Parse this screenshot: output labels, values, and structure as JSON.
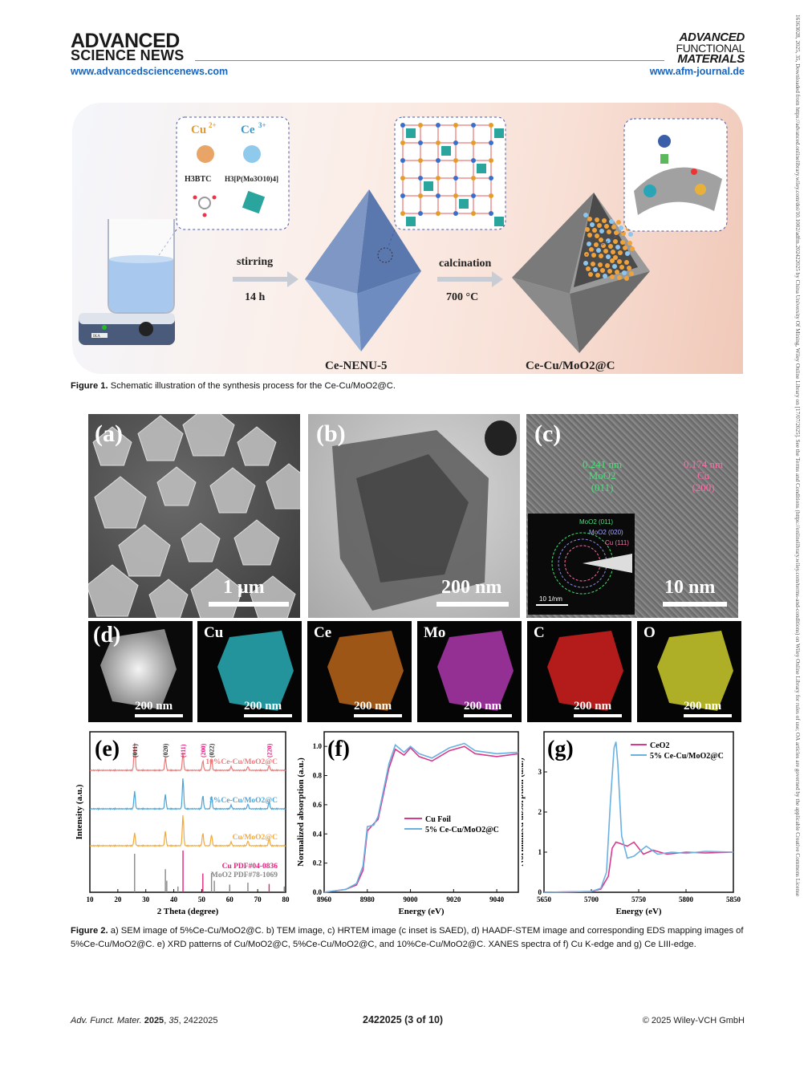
{
  "header": {
    "publisher_line1": "ADVANCED",
    "publisher_line2": "SCIENCE NEWS",
    "publisher_url": "www.advancedsciencenews.com",
    "journal_line1": "ADVANCED",
    "journal_line2": "FUNCTIONAL",
    "journal_line3": "MATERIALS",
    "journal_url": "www.afm-journal.de"
  },
  "side_note": "16163028, 2025, 35, Downloaded from https://advanced.onlinelibrary.wiley.com/doi/10.1002/adfm.202422025 by China University Of Mining, Wiley Online Library on [17/07/2025]. See the Terms and Conditions (https://onlinelibrary.wiley.com/terms-and-conditions) on Wiley Online Library for rules of use; OA articles are governed by the applicable Creative Commons License",
  "figure1": {
    "ion1": "Cu",
    "ion1_sup": "2+",
    "ion2": "Ce",
    "ion2_sup": "3+",
    "ligand1": "H3BTC",
    "ligand2": "H3[P(Mo3O10)4]",
    "step1_top": "stirring",
    "step1_bottom": "14 h",
    "step2_top": "calcination",
    "step2_bottom": "700 °C",
    "product1": "Ce-NENU-5",
    "product2": "Ce-Cu/MoO2@C",
    "stirrer_brand": "IKA",
    "caption_label": "Figure 1.",
    "caption_text": "Schematic illustration of the synthesis process for the Ce-Cu/MoO2@C."
  },
  "figure2": {
    "panel_a": {
      "label": "(a)",
      "scale": "1 μm"
    },
    "panel_b": {
      "label": "(b)",
      "scale": "200 nm"
    },
    "panel_c": {
      "label": "(c)",
      "scale": "10 nm",
      "ann1_l1": "0.241 nm",
      "ann1_l2": "MoO2",
      "ann1_l3": "(011)",
      "ann2_l1": "0.174 nm",
      "ann2_l2": "Cu",
      "ann2_l3": "(200)",
      "saed_1": "MoO2 (011)",
      "saed_2": "MoO2 (020)",
      "saed_3": "Cu (111)",
      "saed_scale": "10 1/nm"
    },
    "panel_d": {
      "label": "(d)",
      "maps": [
        "Cu",
        "Ce",
        "Mo",
        "C",
        "O"
      ],
      "scale": "200 nm"
    },
    "caption_label": "Figure 2.",
    "caption_text": "a) SEM image of 5%Ce-Cu/MoO2@C. b) TEM image, c) HRTEM image (c inset is SAED), d) HAADF-STEM image and corresponding EDS mapping images of 5%Ce-Cu/MoO2@C. e) XRD patterns of Cu/MoO2@C, 5%Ce-Cu/MoO2@C, and 10%Ce-Cu/MoO2@C. XANES spectra of f) Cu K-edge and g) Ce LIII-edge."
  },
  "chart_data": [
    {
      "type": "line",
      "panel": "(e)",
      "xlabel": "2 Theta (degree)",
      "ylabel": "Intensity (a.u.)",
      "xlim": [
        10,
        80
      ],
      "x_ticks": [
        10,
        20,
        30,
        40,
        50,
        60,
        70,
        80
      ],
      "peak_labels": [
        {
          "text": "(011)",
          "x": 26,
          "color": "#333333"
        },
        {
          "text": "(020)",
          "x": 37,
          "color": "#333333"
        },
        {
          "text": "(111)",
          "x": 43.3,
          "color": "#e0247a"
        },
        {
          "text": "(200)",
          "x": 50.4,
          "color": "#e0247a"
        },
        {
          "text": "(022)",
          "x": 53.5,
          "color": "#333333"
        },
        {
          "text": "(220)",
          "x": 74.1,
          "color": "#e0247a"
        }
      ],
      "series": [
        {
          "name": "10%Ce-Cu/MoO2@C",
          "color": "#f07878",
          "peaks": [
            [
              26,
              0.85
            ],
            [
              37,
              0.4
            ],
            [
              43.3,
              0.55
            ],
            [
              50.4,
              0.3
            ],
            [
              53.5,
              0.35
            ],
            [
              60.5,
              0.12
            ],
            [
              66.5,
              0.12
            ],
            [
              74.1,
              0.15
            ]
          ]
        },
        {
          "name": "5%Ce-Cu/MoO2@C",
          "color": "#4ba3d8",
          "peaks": [
            [
              26,
              0.55
            ],
            [
              37,
              0.45
            ],
            [
              43.3,
              0.95
            ],
            [
              50.4,
              0.42
            ],
            [
              53.5,
              0.4
            ],
            [
              60.5,
              0.12
            ],
            [
              66.5,
              0.15
            ],
            [
              74.1,
              0.22
            ]
          ]
        },
        {
          "name": "Cu/MoO2@C",
          "color": "#f2a93b",
          "peaks": [
            [
              26,
              0.4
            ],
            [
              37,
              0.45
            ],
            [
              43.3,
              0.95
            ],
            [
              50.4,
              0.4
            ],
            [
              53.5,
              0.35
            ],
            [
              60.5,
              0.12
            ],
            [
              66.5,
              0.15
            ],
            [
              74.1,
              0.22
            ]
          ]
        }
      ],
      "reference_legend": [
        {
          "name": "Cu PDF#04-0836",
          "color": "#e0247a",
          "sticks": [
            [
              43.3,
              1.0
            ],
            [
              50.4,
              0.45
            ],
            [
              74.1,
              0.2
            ]
          ]
        },
        {
          "name": "MoO2 PDF#78-1069",
          "color": "#888888",
          "sticks": [
            [
              26,
              1.0
            ],
            [
              37,
              0.6
            ],
            [
              37.5,
              0.3
            ],
            [
              41.5,
              0.15
            ],
            [
              53.5,
              0.5
            ],
            [
              54.5,
              0.3
            ],
            [
              60,
              0.2
            ],
            [
              66.5,
              0.25
            ],
            [
              79.5,
              0.15
            ]
          ]
        }
      ]
    },
    {
      "type": "line",
      "panel": "(f)",
      "xlabel": "Energy (eV)",
      "ylabel": "Normalized absorption (a.u.)",
      "xlim": [
        8960,
        9050
      ],
      "ylim": [
        0,
        1.1
      ],
      "x_ticks": [
        8960,
        8980,
        9000,
        9020,
        9040
      ],
      "y_ticks": [
        0.0,
        0.2,
        0.4,
        0.6,
        0.8,
        1.0
      ],
      "legend": "bottom-right",
      "series": [
        {
          "name": "Cu Foil",
          "color": "#d63a8e",
          "x": [
            8960,
            8970,
            8975,
            8978,
            8980,
            8983,
            8985,
            8990,
            8993,
            8997,
            9000,
            9004,
            9010,
            9018,
            9025,
            9030,
            9040,
            9050
          ],
          "y": [
            0.0,
            0.02,
            0.05,
            0.15,
            0.42,
            0.47,
            0.5,
            0.85,
            0.98,
            0.94,
            0.99,
            0.93,
            0.9,
            0.97,
            1.0,
            0.95,
            0.93,
            0.95
          ]
        },
        {
          "name": "5% Ce-Cu/MoO2@C",
          "color": "#6ab0e0",
          "x": [
            8960,
            8970,
            8975,
            8978,
            8980,
            8983,
            8985,
            8990,
            8993,
            8997,
            9000,
            9004,
            9010,
            9018,
            9025,
            9030,
            9040,
            9050
          ],
          "y": [
            0.0,
            0.02,
            0.06,
            0.18,
            0.45,
            0.46,
            0.52,
            0.88,
            1.01,
            0.96,
            1.0,
            0.95,
            0.92,
            0.99,
            1.02,
            0.97,
            0.95,
            0.96
          ]
        }
      ]
    },
    {
      "type": "line",
      "panel": "(g)",
      "xlabel": "Energy (eV)",
      "ylabel": "Normalized absorption (a.u.)",
      "xlim": [
        5650,
        5850
      ],
      "ylim": [
        0,
        4
      ],
      "x_ticks": [
        5650,
        5700,
        5750,
        5800,
        5850
      ],
      "y_ticks": [
        0,
        1,
        2,
        3
      ],
      "legend": "top-right",
      "series": [
        {
          "name": "CeO2",
          "color": "#d63a8e",
          "x": [
            5650,
            5700,
            5710,
            5718,
            5722,
            5726,
            5730,
            5738,
            5745,
            5755,
            5765,
            5780,
            5800,
            5820,
            5850
          ],
          "y": [
            0.0,
            0.02,
            0.08,
            0.4,
            1.1,
            1.25,
            1.22,
            1.15,
            1.25,
            0.95,
            1.05,
            0.95,
            1.0,
            0.98,
            1.0
          ]
        },
        {
          "name": "5% Ce-Cu/MoO2@C",
          "color": "#6ab0e0",
          "x": [
            5650,
            5700,
            5710,
            5716,
            5720,
            5724,
            5726,
            5728,
            5732,
            5738,
            5745,
            5758,
            5770,
            5785,
            5800,
            5820,
            5850
          ],
          "y": [
            0.0,
            0.02,
            0.1,
            0.5,
            2.2,
            3.6,
            3.75,
            3.2,
            1.4,
            0.85,
            0.9,
            1.15,
            0.95,
            1.0,
            0.97,
            1.02,
            1.0
          ]
        }
      ]
    }
  ],
  "footer": {
    "journal": "Adv. Funct. Mater.",
    "year": "2025",
    "volume": "35",
    "article": "2422025",
    "page": "2422025 (3 of 10)",
    "copyright": "© 2025 Wiley-VCH GmbH"
  }
}
